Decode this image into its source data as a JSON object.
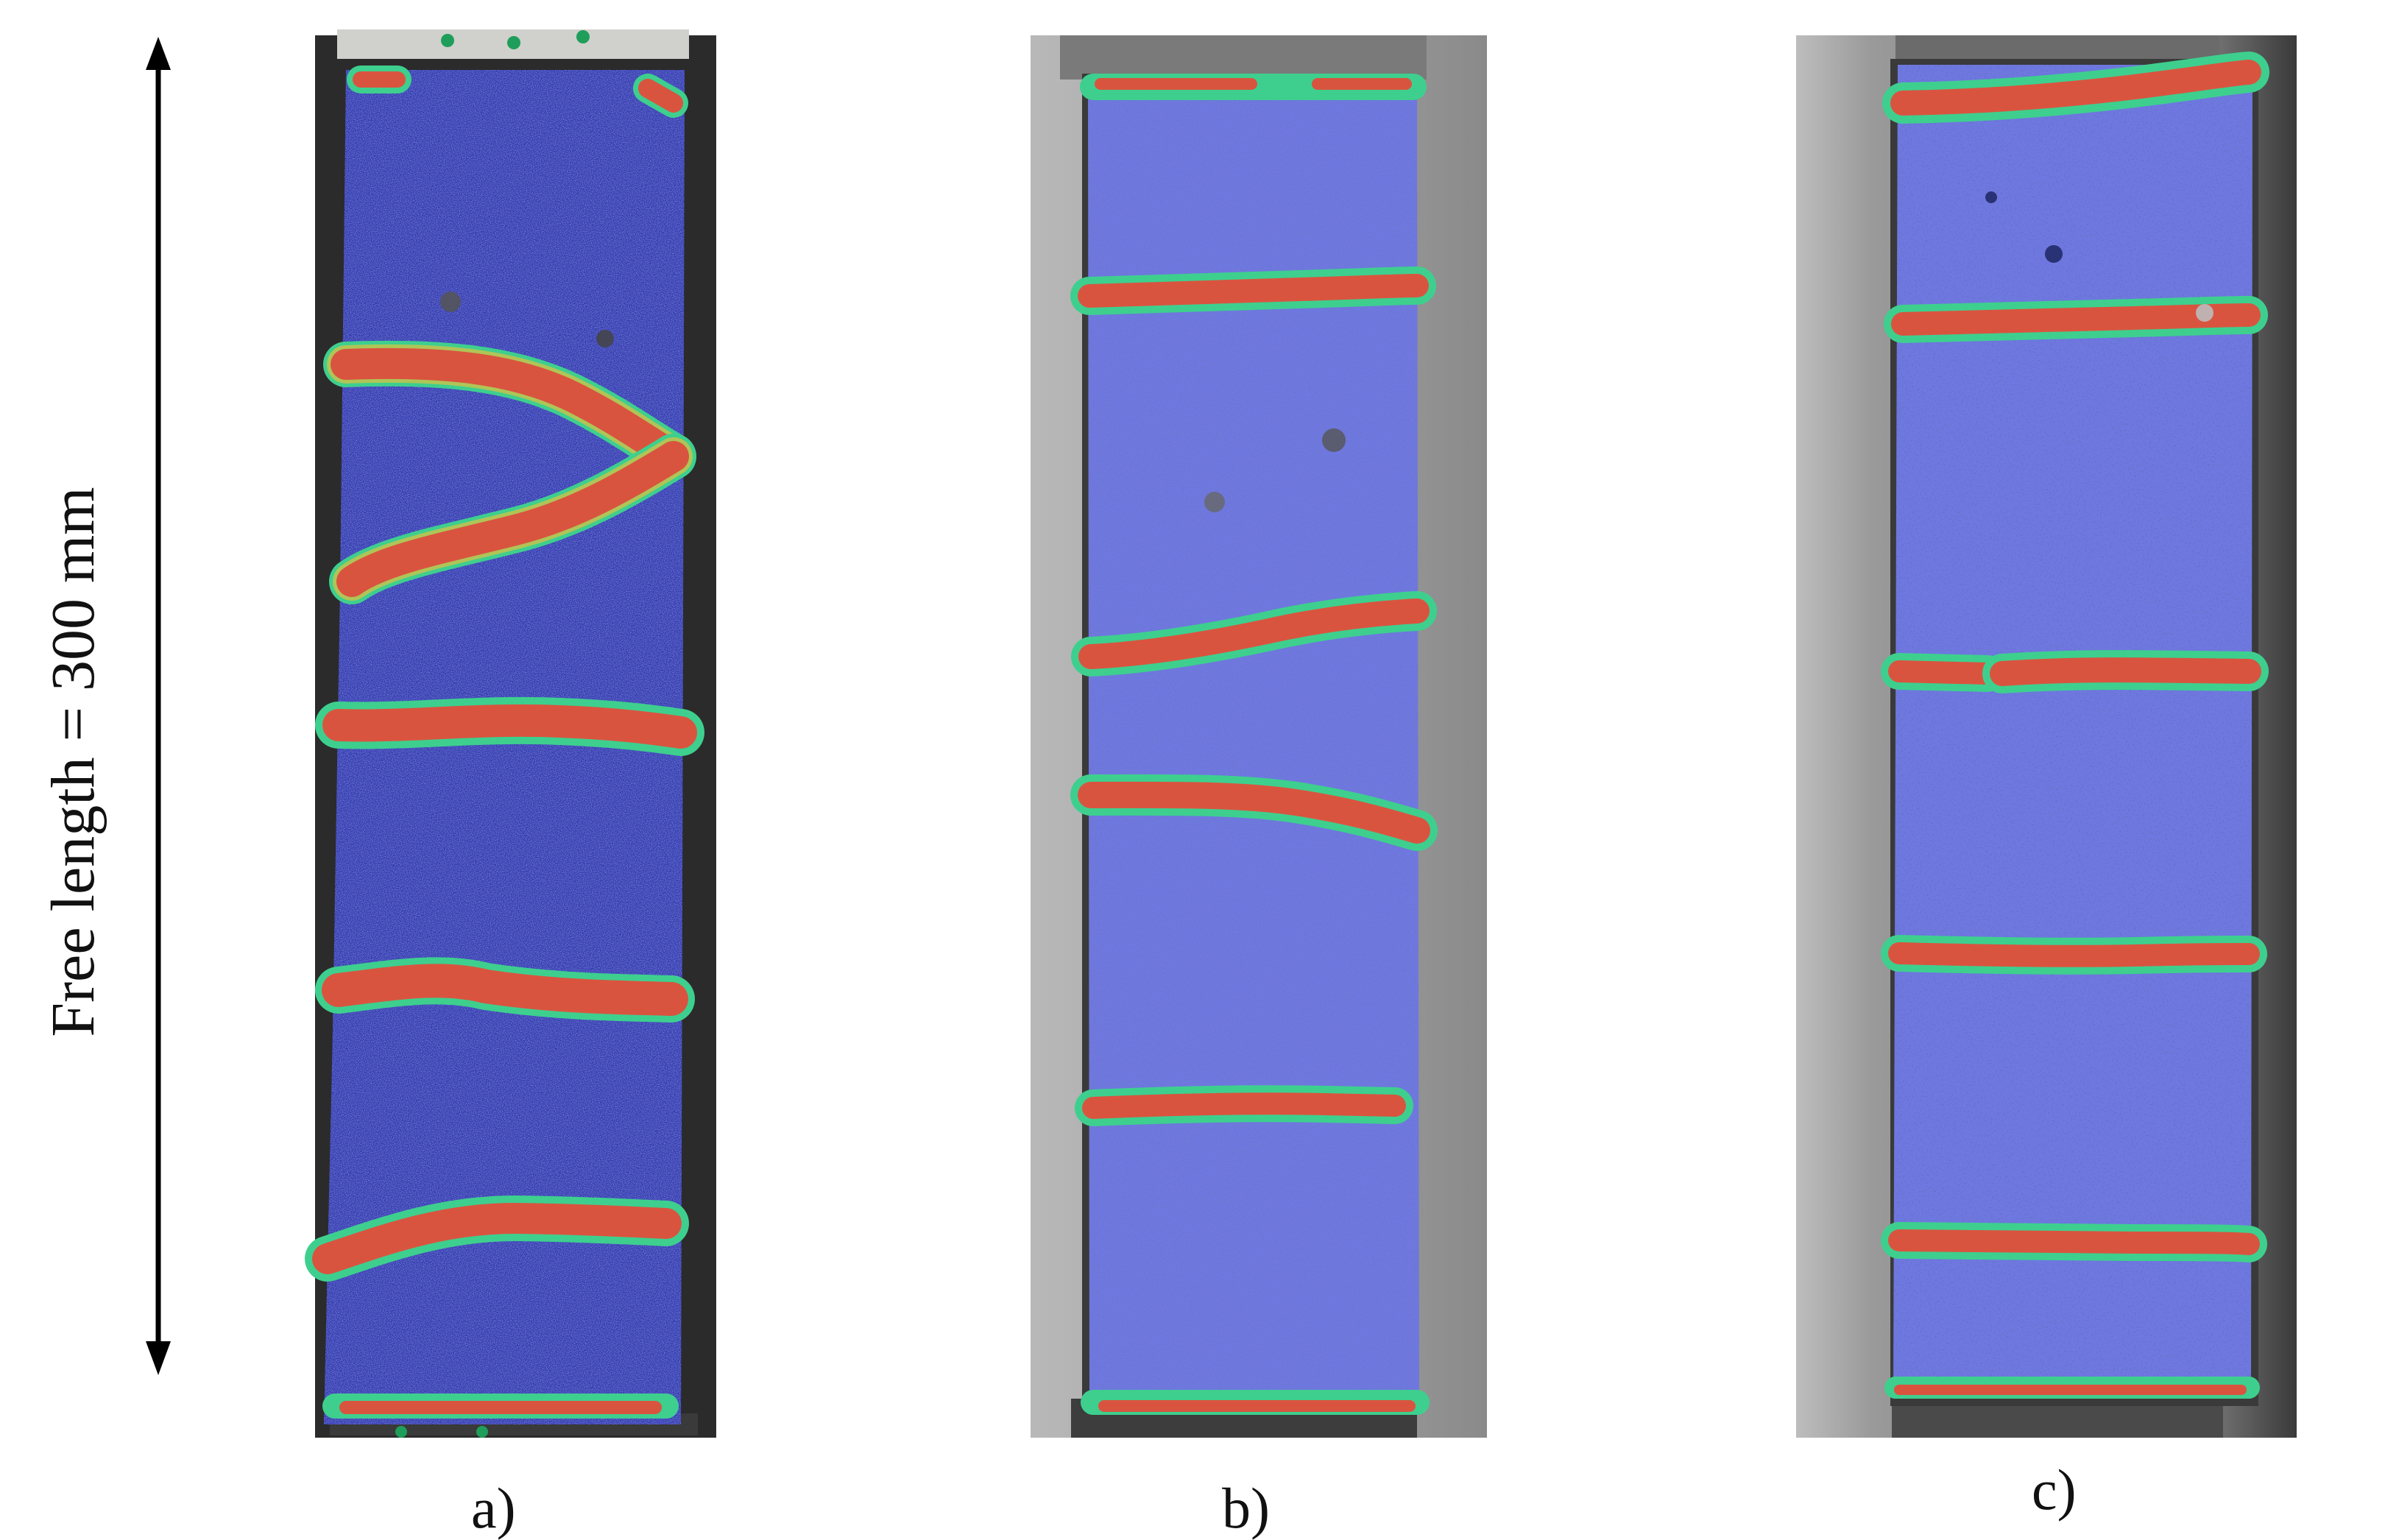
{
  "figure": {
    "dimension_label": "Free length = 300 mm",
    "panels": [
      {
        "label": "a)"
      },
      {
        "label": "b)"
      },
      {
        "label": "c)"
      }
    ]
  },
  "colors": {
    "background": "#ffffff",
    "specimen_blue": "#4a54c9",
    "crack_band_red": "#d9543f",
    "crack_edge_green": "#3ecf8e",
    "frame_gray": "#8f8f8f"
  }
}
